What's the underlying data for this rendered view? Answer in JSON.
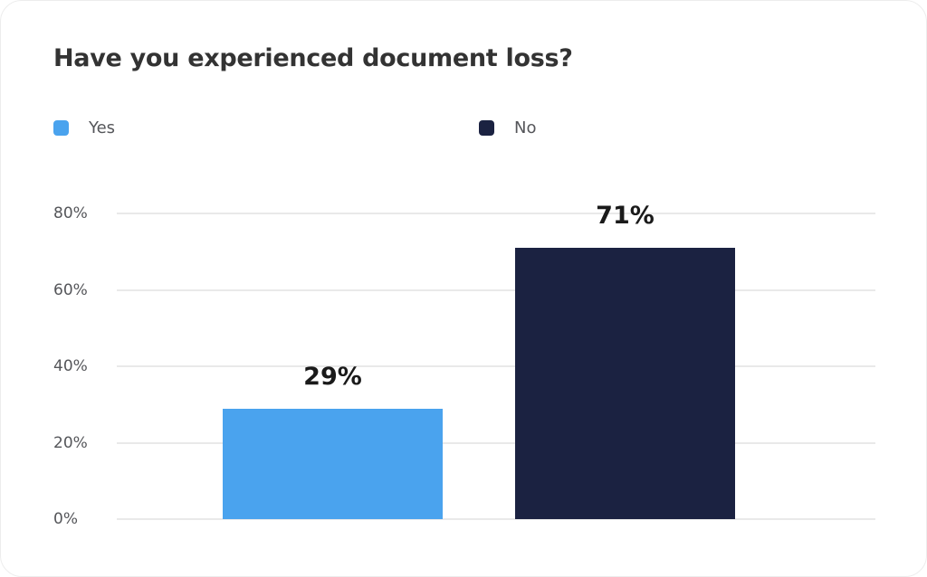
{
  "title": "Have you experienced document loss?",
  "legend": {
    "items": [
      {
        "label": "Yes",
        "color": "#4aa3ee"
      },
      {
        "label": "No",
        "color": "#1b2241"
      }
    ]
  },
  "chart_data": {
    "type": "bar",
    "title": "Have you experienced document loss?",
    "categories": [
      "Yes",
      "No"
    ],
    "values": [
      29,
      71
    ],
    "data_labels": [
      "29%",
      "71%"
    ],
    "series_colors": [
      "#4aa3ee",
      "#1b2241"
    ],
    "xlabel": "",
    "ylabel": "",
    "ylim": [
      0,
      80
    ],
    "yticks": [
      0,
      20,
      40,
      60,
      80
    ],
    "ytick_labels": [
      "0%",
      "20%",
      "40%",
      "60%",
      "80%"
    ],
    "grid": true,
    "gridline_color": "#e9e9e9",
    "legend_position": "top",
    "x_axis_category_labels_visible": false
  },
  "colors": {
    "background": "#ffffff",
    "title_text": "#333333",
    "axis_text": "#55565a",
    "legend_text": "#55565a",
    "data_label_text": "#1a1a1a"
  }
}
